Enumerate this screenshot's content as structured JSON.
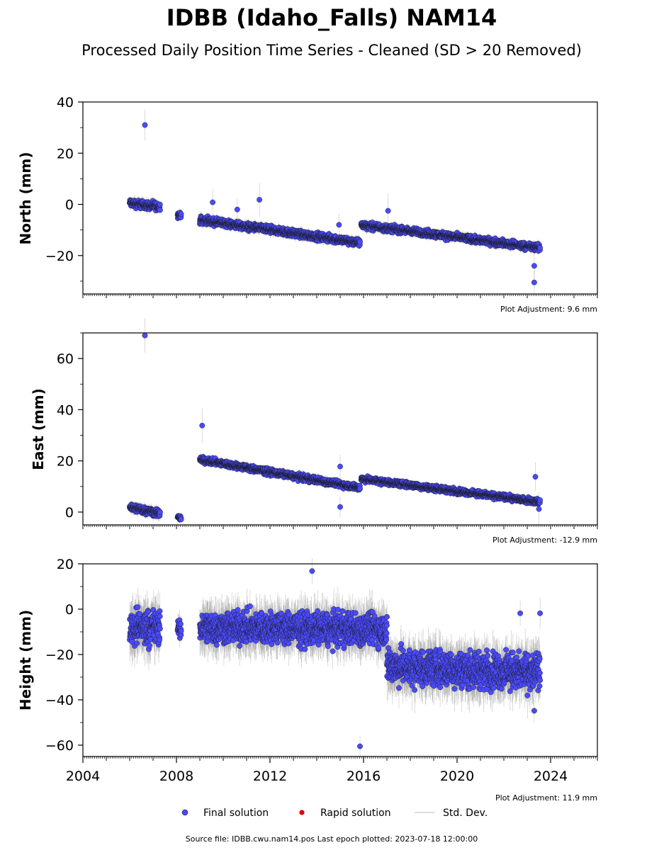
{
  "header": {
    "title": "IDBB (Idaho_Falls) NAM14",
    "subtitle": "Processed Daily Position Time Series - Cleaned (SD > 20 Removed)"
  },
  "colors": {
    "final": "#4a4aff",
    "rapid": "#e00000",
    "stddev": "#a0a0a0"
  },
  "legend": {
    "final_label": "Final solution",
    "rapid_label": "Rapid solution",
    "stddev_label": "Std. Dev."
  },
  "footer": {
    "source": "Source file: IDBB.cwu.nam14.pos  Last epoch plotted: 2023-07-18 12:00:00"
  },
  "chart_data": [
    {
      "type": "scatter",
      "name": "north",
      "ylabel": "North (mm)",
      "adjustment_label": "Plot Adjustment: 9.6 mm",
      "xlim": [
        2004,
        2026
      ],
      "ylim": [
        -35,
        40
      ],
      "yticks": [
        -20,
        0,
        20,
        40
      ],
      "xtick_labels_shown": false,
      "series": [
        {
          "name": "Final solution",
          "segments": [
            {
              "x0": 2006.0,
              "x1": 2007.3,
              "y0": 0.5,
              "y1": -1.0,
              "noise": 1.3
            },
            {
              "x0": 2008.05,
              "x1": 2008.2,
              "y0": -4.0,
              "y1": -4.5,
              "noise": 0.9
            },
            {
              "x0": 2009.0,
              "x1": 2015.85,
              "y0": -6.0,
              "y1": -15.0,
              "noise": 1.2
            },
            {
              "x0": 2015.9,
              "x1": 2023.55,
              "y0": -8.0,
              "y1": -17.0,
              "noise": 1.1
            }
          ],
          "outliers": [
            {
              "x": 2006.65,
              "y": 31.0
            },
            {
              "x": 2009.55,
              "y": 0.8
            },
            {
              "x": 2010.6,
              "y": -2.0
            },
            {
              "x": 2011.55,
              "y": 1.8
            },
            {
              "x": 2014.95,
              "y": -8.0
            },
            {
              "x": 2017.05,
              "y": -2.5
            },
            {
              "x": 2023.3,
              "y": -24.0
            },
            {
              "x": 2023.3,
              "y": -30.5
            }
          ]
        }
      ]
    },
    {
      "type": "scatter",
      "name": "east",
      "ylabel": "East (mm)",
      "adjustment_label": "Plot Adjustment: -12.9 mm",
      "xlim": [
        2004,
        2026
      ],
      "ylim": [
        -5,
        70
      ],
      "yticks": [
        0,
        20,
        40,
        60
      ],
      "xtick_labels_shown": false,
      "series": [
        {
          "name": "Final solution",
          "segments": [
            {
              "x0": 2006.0,
              "x1": 2007.3,
              "y0": 2.0,
              "y1": -0.5,
              "noise": 1.3
            },
            {
              "x0": 2008.05,
              "x1": 2008.2,
              "y0": -2.0,
              "y1": -2.5,
              "noise": 0.7
            },
            {
              "x0": 2009.0,
              "x1": 2015.85,
              "y0": 20.5,
              "y1": 9.5,
              "noise": 1.0
            },
            {
              "x0": 2015.9,
              "x1": 2023.55,
              "y0": 13.0,
              "y1": 4.0,
              "noise": 0.9
            }
          ],
          "outliers": [
            {
              "x": 2006.65,
              "y": 69.0
            },
            {
              "x": 2009.1,
              "y": 33.8
            },
            {
              "x": 2015.0,
              "y": 17.8
            },
            {
              "x": 2015.0,
              "y": 2.0
            },
            {
              "x": 2023.35,
              "y": 13.8
            },
            {
              "x": 2023.5,
              "y": 1.2
            }
          ]
        }
      ]
    },
    {
      "type": "scatter",
      "name": "height",
      "ylabel": "Height (mm)",
      "adjustment_label": "Plot Adjustment: 11.9 mm",
      "xlim": [
        2004,
        2026
      ],
      "ylim": [
        -65,
        20
      ],
      "yticks": [
        -60,
        -40,
        -20,
        0,
        20
      ],
      "xticks": [
        2004,
        2008,
        2012,
        2016,
        2020,
        2024
      ],
      "xtick_labels_shown": true,
      "series": [
        {
          "name": "Final solution",
          "segments": [
            {
              "x0": 2006.0,
              "x1": 2007.3,
              "y0": -8.0,
              "y1": -8.0,
              "noise": 6.5
            },
            {
              "x0": 2008.05,
              "x1": 2008.2,
              "y0": -8.0,
              "y1": -10.0,
              "noise": 3.0
            },
            {
              "x0": 2009.0,
              "x1": 2017.0,
              "y0": -8.0,
              "y1": -9.0,
              "noise": 6.0
            },
            {
              "x0": 2017.0,
              "x1": 2023.55,
              "y0": -25.0,
              "y1": -28.0,
              "noise": 6.5
            }
          ],
          "outliers": [
            {
              "x": 2015.85,
              "y": -60.5
            },
            {
              "x": 2013.8,
              "y": 16.8
            },
            {
              "x": 2023.55,
              "y": -1.8
            },
            {
              "x": 2022.7,
              "y": -1.8
            },
            {
              "x": 2023.3,
              "y": -44.8
            }
          ]
        }
      ]
    }
  ]
}
